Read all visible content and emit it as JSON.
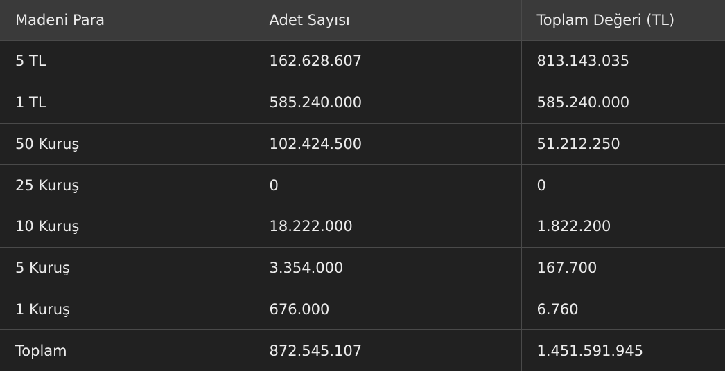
{
  "table": {
    "headers": [
      "Madeni Para",
      "Adet Sayısı",
      "Toplam Değeri (TL)"
    ],
    "rows": [
      [
        "5 TL",
        "162.628.607",
        "813.143.035"
      ],
      [
        "1 TL",
        "585.240.000",
        "585.240.000"
      ],
      [
        "50 Kuruş",
        "102.424.500",
        "51.212.250"
      ],
      [
        "25 Kuruş",
        "0",
        "0"
      ],
      [
        "10 Kuruş",
        "18.222.000",
        "1.822.200"
      ],
      [
        "5 Kuruş",
        "3.354.000",
        "167.700"
      ],
      [
        "1 Kuruş",
        "676.000",
        "6.760"
      ],
      [
        "Toplam",
        "872.545.107",
        "1.451.591.945"
      ]
    ]
  }
}
